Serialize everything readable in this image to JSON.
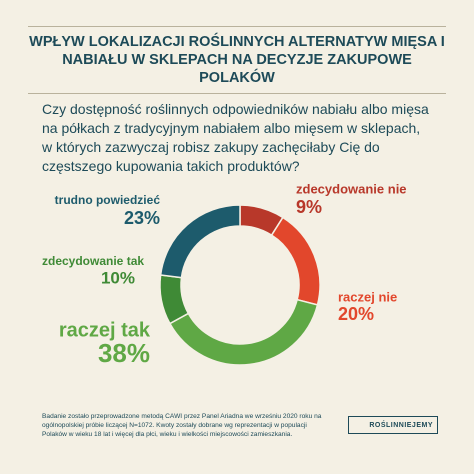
{
  "header": {
    "title": "WPŁYW LOKALIZACJI ROŚLINNYCH ALTERNATYW MIĘSA I NABIAŁU W SKLEPACH NA DECYZJE ZAKUPOWE POLAKÓW"
  },
  "chart_data": {
    "type": "pie",
    "subtitle": "Czy dostępność roślinnych odpowiedników nabiału albo mięsa na półkach z tradycyjnym nabiałem albo mięsem w sklepach, w których zazwyczaj robisz zakupy zachęciłaby Cię do częstszego kupowania takich produktów?",
    "categories": [
      "zdecydowanie nie",
      "raczej nie",
      "raczej tak",
      "zdecydowanie tak",
      "trudno powiedzieć"
    ],
    "values": [
      9,
      20,
      38,
      10,
      23
    ],
    "value_labels": [
      "9%",
      "20%",
      "38%",
      "10%",
      "23%"
    ],
    "colors": [
      "#b8382a",
      "#e2472c",
      "#5fa845",
      "#3f8a36",
      "#1d5b6c"
    ]
  },
  "footer": {
    "note": "Badanie zostało przeprowadzone metodą CAWI przez Panel Ariadna we wrześniu 2020 roku na ogólnopolskiej próbie liczącej N=1072. Kwoty zostały dobrane wg reprezentacji w populacji Polaków w wieku 18 lat i więcej dla płci, wieku i wielkości miejscowości zamieszkania.",
    "brand": "ROŚLINNIEJEMY"
  }
}
